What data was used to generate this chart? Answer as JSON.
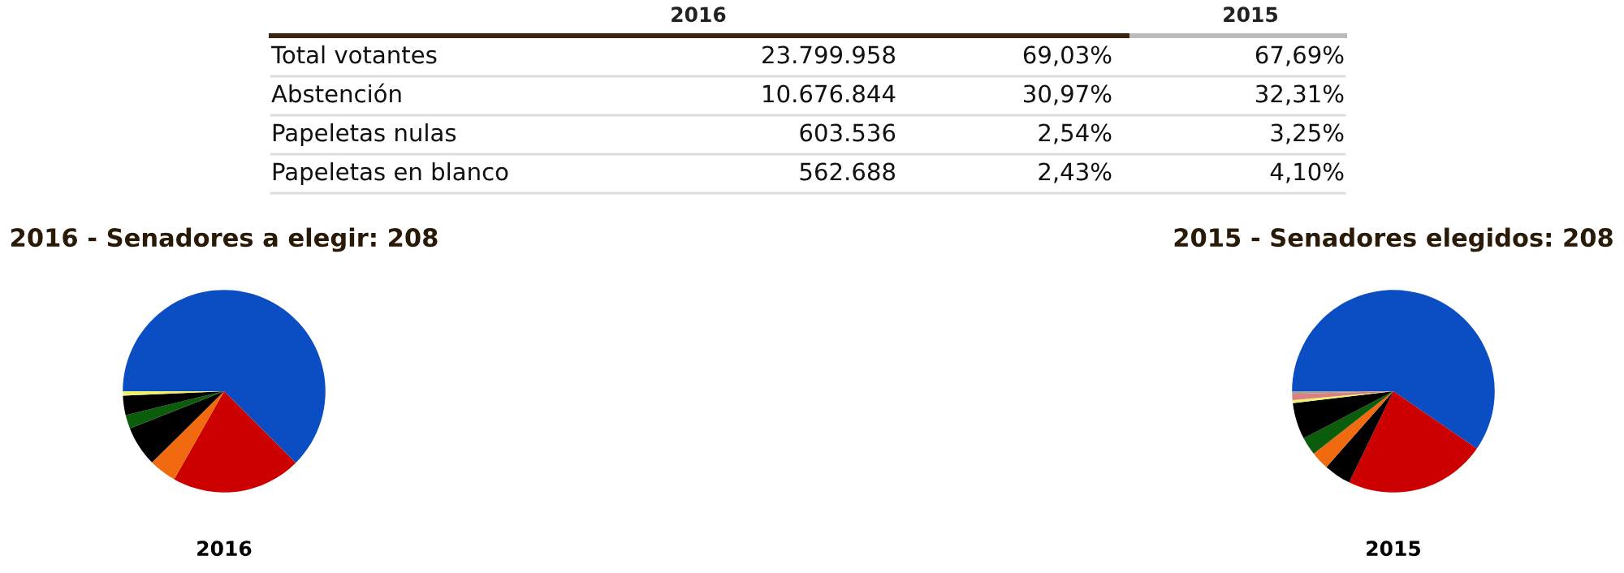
{
  "chart_data": [
    {
      "type": "other",
      "annotations": [
        "2016",
        "2015",
        "Total votantes",
        "23.799.958",
        "69,03%",
        "67,69%",
        "Abstención",
        "10.676.844",
        "30,97%",
        "32,31%",
        "Papeletas nulas",
        "603.536",
        "2,54%",
        "3,25%",
        "Papeletas en blanco",
        "562.688",
        "2,43%",
        "4,10%"
      ]
    },
    {
      "type": "pie",
      "title": "2016 - Senadores a elegir: 208",
      "xlabel": "2016",
      "categories": [
        null,
        null,
        null,
        null,
        null,
        null,
        null
      ],
      "values": [
        62.5,
        20.7,
        4.4,
        6.4,
        2.2,
        3.1,
        0.7
      ],
      "colors": [
        "#0b4dc2",
        "#cc0000",
        "#f26a10",
        "#000000",
        "#0b5c0b",
        "#000000",
        "#f0f070"
      ]
    },
    {
      "type": "pie",
      "title": "2015 - Senadores elegidos: 208",
      "xlabel": "2015",
      "categories": [
        null,
        null,
        null,
        null,
        null,
        null,
        null,
        null,
        null
      ],
      "values": [
        59.6,
        22.6,
        4.3,
        2.9,
        2.9,
        5.8,
        0.5,
        1.0,
        0.4
      ],
      "colors": [
        "#0b4dc2",
        "#cc0000",
        "#000000",
        "#f26a10",
        "#0b5c0b",
        "#000000",
        "#f0f070",
        "#d98080",
        "#a0a0a0"
      ]
    }
  ]
}
